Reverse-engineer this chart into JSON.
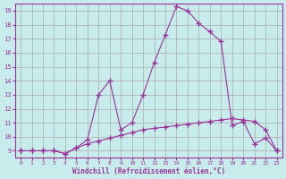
{
  "xlabel": "Windchill (Refroidissement éolien,°C)",
  "line1_x": [
    0,
    1,
    2,
    3,
    4,
    5,
    6,
    7,
    8,
    9,
    10,
    11,
    12,
    13,
    14,
    15,
    16,
    17,
    18,
    19,
    20,
    21,
    22,
    23
  ],
  "line1_y": [
    9.0,
    9.0,
    9.0,
    9.0,
    8.8,
    9.2,
    9.5,
    9.7,
    9.9,
    10.1,
    10.3,
    10.5,
    10.6,
    10.7,
    10.8,
    10.9,
    11.0,
    11.1,
    11.2,
    11.3,
    11.2,
    11.1,
    10.5,
    9.0
  ],
  "line2_x": [
    0,
    1,
    2,
    3,
    4,
    5,
    6,
    7,
    8,
    9,
    10,
    11,
    12,
    13,
    14,
    15,
    16,
    17,
    18,
    19,
    20,
    21,
    22,
    23
  ],
  "line2_y": [
    9.0,
    9.0,
    9.0,
    9.0,
    8.8,
    9.2,
    9.8,
    13.0,
    14.0,
    10.5,
    11.0,
    13.0,
    15.3,
    17.3,
    19.3,
    19.0,
    18.1,
    17.5,
    16.8,
    10.8,
    11.1,
    9.5,
    9.9,
    9.0
  ],
  "line_color": "#993399",
  "bg_color": "#c8ecec",
  "grid_color": "#b0d0d0",
  "marker": "+",
  "marker_size": 4,
  "ylim": [
    8.5,
    19.5
  ],
  "xlim": [
    -0.5,
    23.5
  ],
  "yticks": [
    9,
    10,
    11,
    12,
    13,
    14,
    15,
    16,
    17,
    18,
    19
  ],
  "xticks": [
    0,
    1,
    2,
    3,
    4,
    5,
    6,
    7,
    8,
    9,
    10,
    11,
    12,
    13,
    14,
    15,
    16,
    17,
    18,
    19,
    20,
    21,
    22,
    23
  ]
}
